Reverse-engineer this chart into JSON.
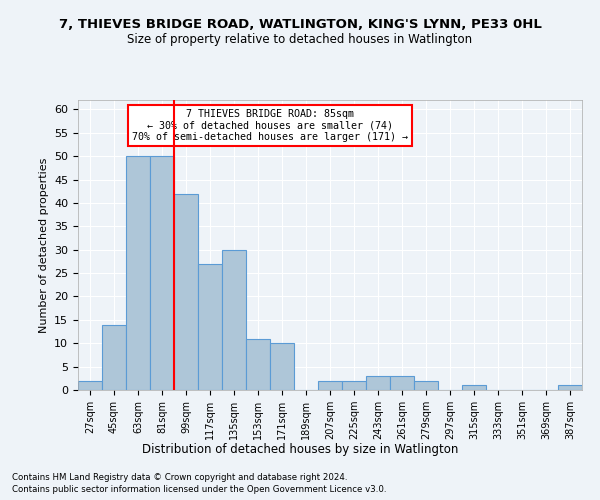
{
  "title": "7, THIEVES BRIDGE ROAD, WATLINGTON, KING'S LYNN, PE33 0HL",
  "subtitle": "Size of property relative to detached houses in Watlington",
  "xlabel": "Distribution of detached houses by size in Watlington",
  "ylabel": "Number of detached properties",
  "bar_labels": [
    "27sqm",
    "45sqm",
    "63sqm",
    "81sqm",
    "99sqm",
    "117sqm",
    "135sqm",
    "153sqm",
    "171sqm",
    "189sqm",
    "207sqm",
    "225sqm",
    "243sqm",
    "261sqm",
    "279sqm",
    "297sqm",
    "315sqm",
    "333sqm",
    "351sqm",
    "369sqm",
    "387sqm"
  ],
  "bar_values": [
    2,
    14,
    50,
    50,
    42,
    27,
    30,
    11,
    10,
    0,
    2,
    2,
    3,
    3,
    2,
    0,
    1,
    0,
    0,
    0,
    1
  ],
  "bar_color": "#AEC6D8",
  "bar_edge_color": "#5B9BD5",
  "ylim": [
    0,
    62
  ],
  "yticks": [
    0,
    5,
    10,
    15,
    20,
    25,
    30,
    35,
    40,
    45,
    50,
    55,
    60
  ],
  "red_line_x": 3.5,
  "annotation_title": "7 THIEVES BRIDGE ROAD: 85sqm",
  "annotation_line1": "← 30% of detached houses are smaller (74)",
  "annotation_line2": "70% of semi-detached houses are larger (171) →",
  "footer1": "Contains HM Land Registry data © Crown copyright and database right 2024.",
  "footer2": "Contains public sector information licensed under the Open Government Licence v3.0.",
  "bg_color": "#EEF3F8",
  "plot_bg_color": "#EEF3F8"
}
